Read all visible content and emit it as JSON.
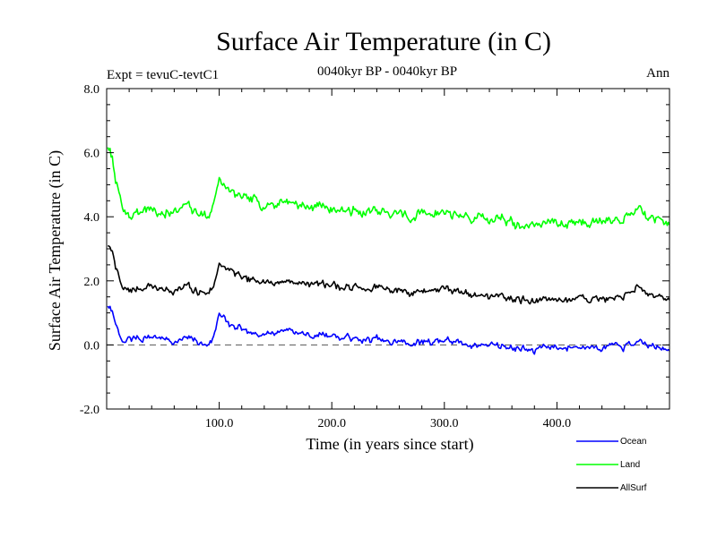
{
  "chart_data": {
    "type": "line",
    "title": "Surface Air Temperature (in C)",
    "subtitle": "0040kyr BP - 0040kyr BP",
    "expt_label": "Expt = tevuC-tevtC1",
    "season_label": "Ann",
    "xlabel": "Time (in years since start)",
    "ylabel": "Surface Air Temperature (in C)",
    "xlim": [
      0,
      500
    ],
    "ylim": [
      -2.0,
      8.0
    ],
    "xticks": [
      100,
      200,
      300,
      400
    ],
    "xtick_labels": [
      "100.0",
      "200.0",
      "300.0",
      "400.0"
    ],
    "yticks": [
      -2,
      0,
      2,
      4,
      6,
      8
    ],
    "ytick_labels": [
      "-2.0",
      "0.0",
      "2.0",
      "4.0",
      "6.0",
      "8.0"
    ],
    "reference_line": 0.0,
    "legend_position": "bottom-right",
    "series": [
      {
        "name": "Ocean",
        "color": "#0000ff",
        "x": [
          0,
          5,
          10,
          15,
          20,
          30,
          40,
          50,
          60,
          70,
          80,
          90,
          95,
          100,
          105,
          110,
          120,
          130,
          140,
          150,
          160,
          170,
          180,
          190,
          200,
          210,
          220,
          230,
          240,
          250,
          260,
          270,
          280,
          290,
          300,
          310,
          320,
          330,
          340,
          350,
          360,
          370,
          380,
          390,
          400,
          410,
          420,
          430,
          440,
          450,
          460,
          470,
          480,
          490,
          500
        ],
        "values": [
          1.2,
          1.1,
          0.4,
          0.0,
          0.2,
          0.2,
          0.3,
          0.2,
          0.1,
          0.2,
          0.1,
          0.0,
          0.2,
          1.0,
          0.8,
          0.6,
          0.5,
          0.3,
          0.4,
          0.4,
          0.5,
          0.4,
          0.3,
          0.3,
          0.3,
          0.2,
          0.2,
          0.1,
          0.2,
          0.1,
          0.1,
          0.0,
          0.1,
          0.1,
          0.2,
          0.1,
          0.0,
          0.0,
          0.0,
          0.0,
          -0.1,
          -0.1,
          -0.2,
          0.0,
          -0.1,
          -0.1,
          -0.1,
          0.0,
          -0.1,
          0.0,
          -0.1,
          0.1,
          0.0,
          -0.1,
          -0.1
        ]
      },
      {
        "name": "Land",
        "color": "#00ff00",
        "x": [
          0,
          5,
          10,
          15,
          20,
          30,
          40,
          50,
          60,
          70,
          80,
          90,
          95,
          100,
          105,
          110,
          120,
          130,
          140,
          150,
          160,
          170,
          180,
          190,
          200,
          210,
          220,
          230,
          240,
          250,
          260,
          270,
          280,
          290,
          300,
          310,
          320,
          330,
          340,
          350,
          360,
          370,
          380,
          390,
          400,
          410,
          420,
          430,
          440,
          450,
          460,
          470,
          480,
          490,
          500
        ],
        "values": [
          6.2,
          5.8,
          4.8,
          4.2,
          4.0,
          4.2,
          4.3,
          4.1,
          4.2,
          4.3,
          4.1,
          4.0,
          4.3,
          5.3,
          4.9,
          4.8,
          4.6,
          4.5,
          4.4,
          4.4,
          4.5,
          4.4,
          4.3,
          4.3,
          4.3,
          4.2,
          4.2,
          4.1,
          4.2,
          4.1,
          4.1,
          4.0,
          4.1,
          4.1,
          4.2,
          4.0,
          4.0,
          4.0,
          3.9,
          4.0,
          3.8,
          3.7,
          3.7,
          3.9,
          3.8,
          3.8,
          3.9,
          3.9,
          3.9,
          3.8,
          3.9,
          4.2,
          4.0,
          3.9,
          3.9
        ]
      },
      {
        "name": "AllSurf",
        "color": "#000000",
        "x": [
          0,
          5,
          10,
          15,
          20,
          30,
          40,
          50,
          60,
          70,
          80,
          90,
          95,
          100,
          105,
          110,
          120,
          130,
          140,
          150,
          160,
          170,
          180,
          190,
          200,
          210,
          220,
          230,
          240,
          250,
          260,
          270,
          280,
          290,
          300,
          310,
          320,
          330,
          340,
          350,
          360,
          370,
          380,
          390,
          400,
          410,
          420,
          430,
          440,
          450,
          460,
          470,
          480,
          490,
          500
        ],
        "values": [
          3.1,
          2.9,
          2.2,
          1.7,
          1.7,
          1.8,
          1.8,
          1.7,
          1.7,
          1.8,
          1.7,
          1.6,
          1.8,
          2.6,
          2.4,
          2.3,
          2.1,
          2.0,
          2.0,
          1.9,
          2.0,
          1.9,
          1.9,
          1.9,
          1.9,
          1.8,
          1.8,
          1.7,
          1.8,
          1.7,
          1.7,
          1.6,
          1.7,
          1.7,
          1.8,
          1.6,
          1.6,
          1.6,
          1.5,
          1.6,
          1.4,
          1.4,
          1.3,
          1.5,
          1.4,
          1.4,
          1.5,
          1.5,
          1.5,
          1.4,
          1.5,
          1.8,
          1.6,
          1.5,
          1.5
        ]
      }
    ]
  }
}
